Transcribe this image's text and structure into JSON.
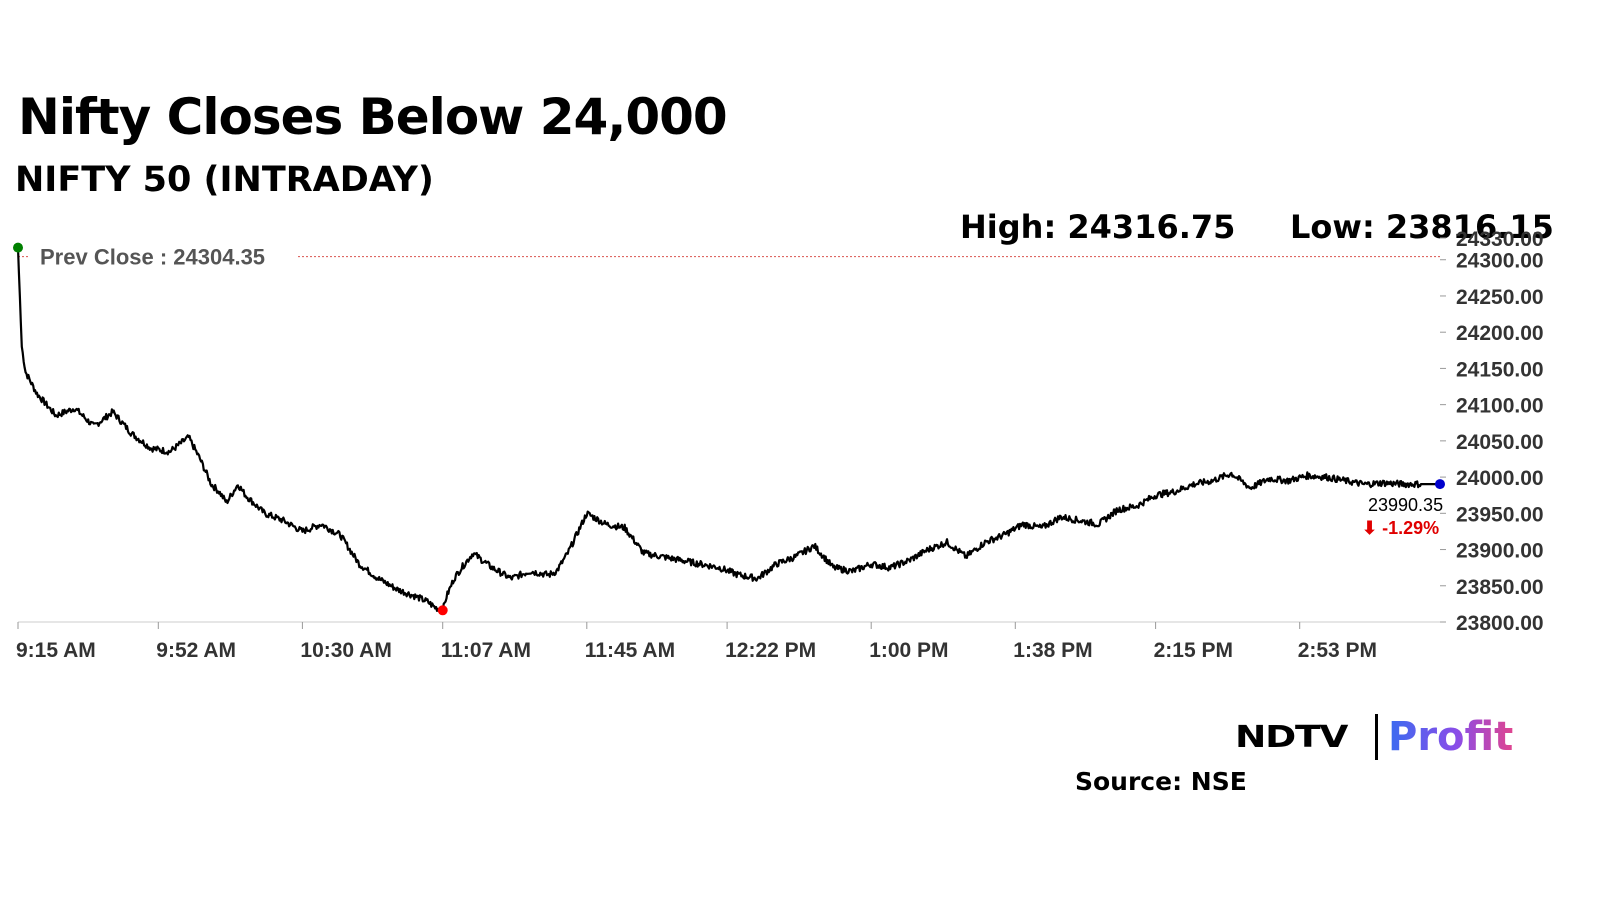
{
  "header": {
    "title": "Nifty Closes Below 24,000",
    "subtitle": "NIFTY 50 (INTRADAY)",
    "high_text": "High: 24316.75",
    "low_text": "Low: 23816.15"
  },
  "footer": {
    "logo_ndtv": "NDTV",
    "logo_profit": "Profit",
    "source": "Source: NSE"
  },
  "colors": {
    "line": "#000000",
    "prev_close_line": "#d9534f",
    "open_marker": "#008000",
    "low_marker": "#ff0000",
    "close_marker": "#0000cc",
    "change_negative": "#e00000"
  },
  "chart_data": {
    "type": "line",
    "title": "NIFTY 50 (INTRADAY)",
    "high": 24316.75,
    "low": 23816.15,
    "prev_close": 24304.35,
    "prev_close_label": "Prev Close : 24304.35",
    "last_value": 23990.35,
    "last_value_label": "23990.35",
    "change_label": "⬇ -1.29%",
    "ylim": [
      23800,
      24330
    ],
    "y_ticks": [
      24330,
      24300,
      24250,
      24200,
      24150,
      24100,
      24050,
      24000,
      23950,
      23900,
      23850,
      23800
    ],
    "y_tick_labels": [
      "24330.00",
      "24300.00",
      "24250.00",
      "24200.00",
      "24150.00",
      "24100.00",
      "24050.00",
      "24000.00",
      "23950.00",
      "23900.00",
      "23850.00",
      "23800.00"
    ],
    "x_tick_labels": [
      "9:15 AM",
      "9:52 AM",
      "10:30 AM",
      "11:07 AM",
      "11:45 AM",
      "12:22 PM",
      "1:00 PM",
      "1:38 PM",
      "2:15 PM",
      "2:53 PM"
    ],
    "x_tick_minutes": [
      555,
      592,
      630,
      667,
      705,
      742,
      780,
      818,
      855,
      893
    ],
    "xlim_minutes": [
      555,
      930
    ],
    "series": [
      {
        "x_minutes": [
          555,
          556,
          557,
          560,
          565,
          570,
          575,
          580,
          585,
          590,
          595,
          600,
          603,
          606,
          608,
          610,
          613,
          615,
          620,
          625,
          630,
          635,
          640,
          645,
          650,
          655,
          660,
          663,
          665,
          667,
          668,
          670,
          672,
          675,
          680,
          685,
          690,
          695,
          697,
          700,
          705,
          710,
          715,
          720,
          725,
          730,
          735,
          740,
          745,
          750,
          755,
          760,
          765,
          770,
          775,
          780,
          785,
          790,
          795,
          800,
          805,
          810,
          815,
          820,
          825,
          830,
          835,
          840,
          845,
          850,
          855,
          860,
          865,
          870,
          875,
          880,
          885,
          890,
          895,
          900,
          905,
          910,
          915,
          920,
          925,
          930
        ],
        "y": [
          24316.75,
          24180,
          24145,
          24115,
          24085,
          24095,
          24070,
          24090,
          24060,
          24040,
          24035,
          24055,
          24025,
          23990,
          23980,
          23965,
          23990,
          23975,
          23950,
          23940,
          23925,
          23935,
          23920,
          23880,
          23860,
          23845,
          23835,
          23828,
          23820,
          23816.15,
          23835,
          23860,
          23875,
          23895,
          23875,
          23860,
          23870,
          23865,
          23870,
          23895,
          23950,
          23935,
          23930,
          23895,
          23890,
          23885,
          23880,
          23875,
          23865,
          23860,
          23880,
          23890,
          23905,
          23875,
          23870,
          23880,
          23875,
          23885,
          23900,
          23910,
          23890,
          23910,
          23920,
          23935,
          23930,
          23945,
          23940,
          23935,
          23955,
          23960,
          23975,
          23980,
          23990,
          23995,
          24005,
          23985,
          23998,
          23995,
          24002,
          24000,
          23995,
          23990,
          23992,
          23990.35,
          23990.35,
          23990.35
        ]
      }
    ],
    "grid": false,
    "legend": "none"
  }
}
